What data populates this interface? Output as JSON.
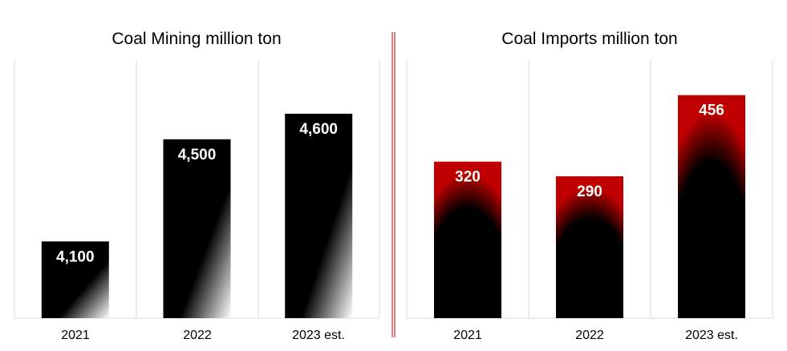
{
  "colors": {
    "accent_red": "#c00000",
    "bar_black": "#000000",
    "divider": "#c00000"
  },
  "chart_data": [
    {
      "type": "bar",
      "title": "Coal Mining million ton",
      "categories": [
        "2021",
        "2022",
        "2023 est."
      ],
      "values": [
        4100,
        4500,
        4600
      ],
      "value_labels": [
        "4,100",
        "4,500",
        "4,600"
      ],
      "ylim": [
        3800,
        4700
      ],
      "grid": "vertical category separators",
      "bar_style": "black with white gradient corner"
    },
    {
      "type": "bar",
      "title": "Coal Imports million ton",
      "categories": [
        "2021",
        "2022",
        "2023 est."
      ],
      "values": [
        320,
        290,
        456
      ],
      "value_labels": [
        "320",
        "290",
        "456"
      ],
      "ylim": [
        0,
        480
      ],
      "grid": "vertical category separators",
      "bar_style": "red top fading to black"
    }
  ]
}
